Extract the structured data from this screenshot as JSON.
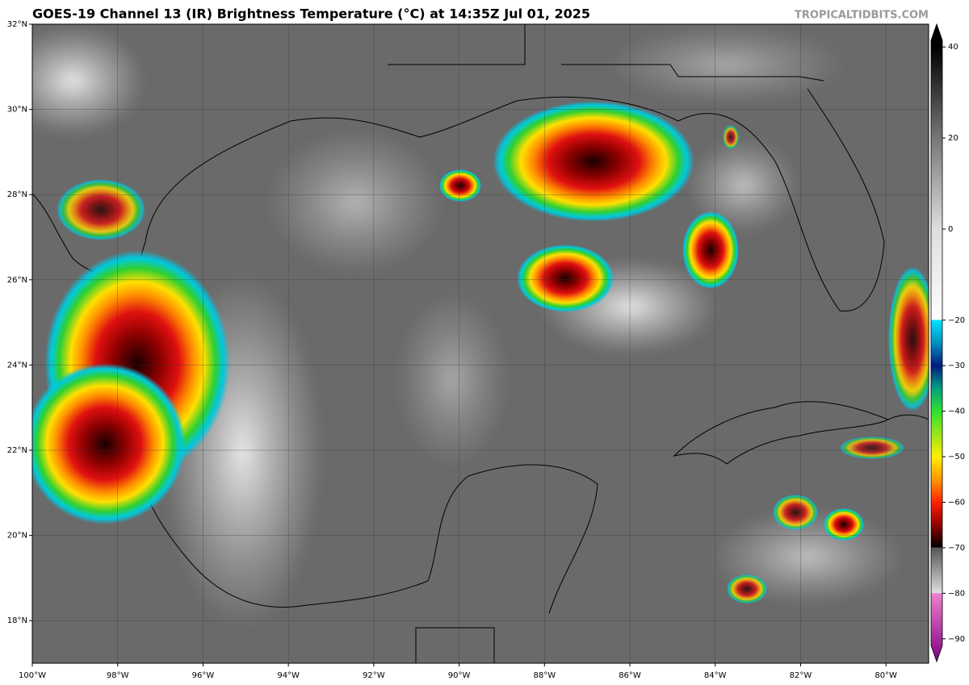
{
  "header": {
    "title": "GOES-19 Channel 13 (IR) Brightness Temperature (°C) at 14:35Z Jul 01, 2025",
    "credit": "TROPICALTIDBITS.COM"
  },
  "map": {
    "lat_range": [
      17,
      32
    ],
    "lon_range": [
      -100,
      -79
    ],
    "lat_labels": [
      {
        "value": 32,
        "label": "32°N"
      },
      {
        "value": 30,
        "label": "30°N"
      },
      {
        "value": 28,
        "label": "28°N"
      },
      {
        "value": 26,
        "label": "26°N"
      },
      {
        "value": 24,
        "label": "24°N"
      },
      {
        "value": 22,
        "label": "22°N"
      },
      {
        "value": 20,
        "label": "20°N"
      },
      {
        "value": 18,
        "label": "18°N"
      }
    ],
    "lon_labels": [
      {
        "value": -100,
        "label": "100°W"
      },
      {
        "value": -98,
        "label": "98°W"
      },
      {
        "value": -96,
        "label": "96°W"
      },
      {
        "value": -94,
        "label": "94°W"
      },
      {
        "value": -92,
        "label": "92°W"
      },
      {
        "value": -90,
        "label": "90°W"
      },
      {
        "value": -88,
        "label": "88°W"
      },
      {
        "value": -86,
        "label": "86°W"
      },
      {
        "value": -84,
        "label": "84°W"
      },
      {
        "value": -82,
        "label": "82°W"
      },
      {
        "value": -80,
        "label": "80°W"
      }
    ]
  },
  "colorbar": {
    "limits": [
      -95,
      45
    ],
    "ticks": [
      {
        "value": 40,
        "label": "40"
      },
      {
        "value": 20,
        "label": "20"
      },
      {
        "value": 0,
        "label": "0"
      },
      {
        "value": -20,
        "label": "−20"
      },
      {
        "value": -30,
        "label": "−30"
      },
      {
        "value": -40,
        "label": "−40"
      },
      {
        "value": -50,
        "label": "−50"
      },
      {
        "value": -60,
        "label": "−60"
      },
      {
        "value": -70,
        "label": "−70"
      },
      {
        "value": -80,
        "label": "−80"
      },
      {
        "value": -90,
        "label": "−90"
      }
    ]
  }
}
